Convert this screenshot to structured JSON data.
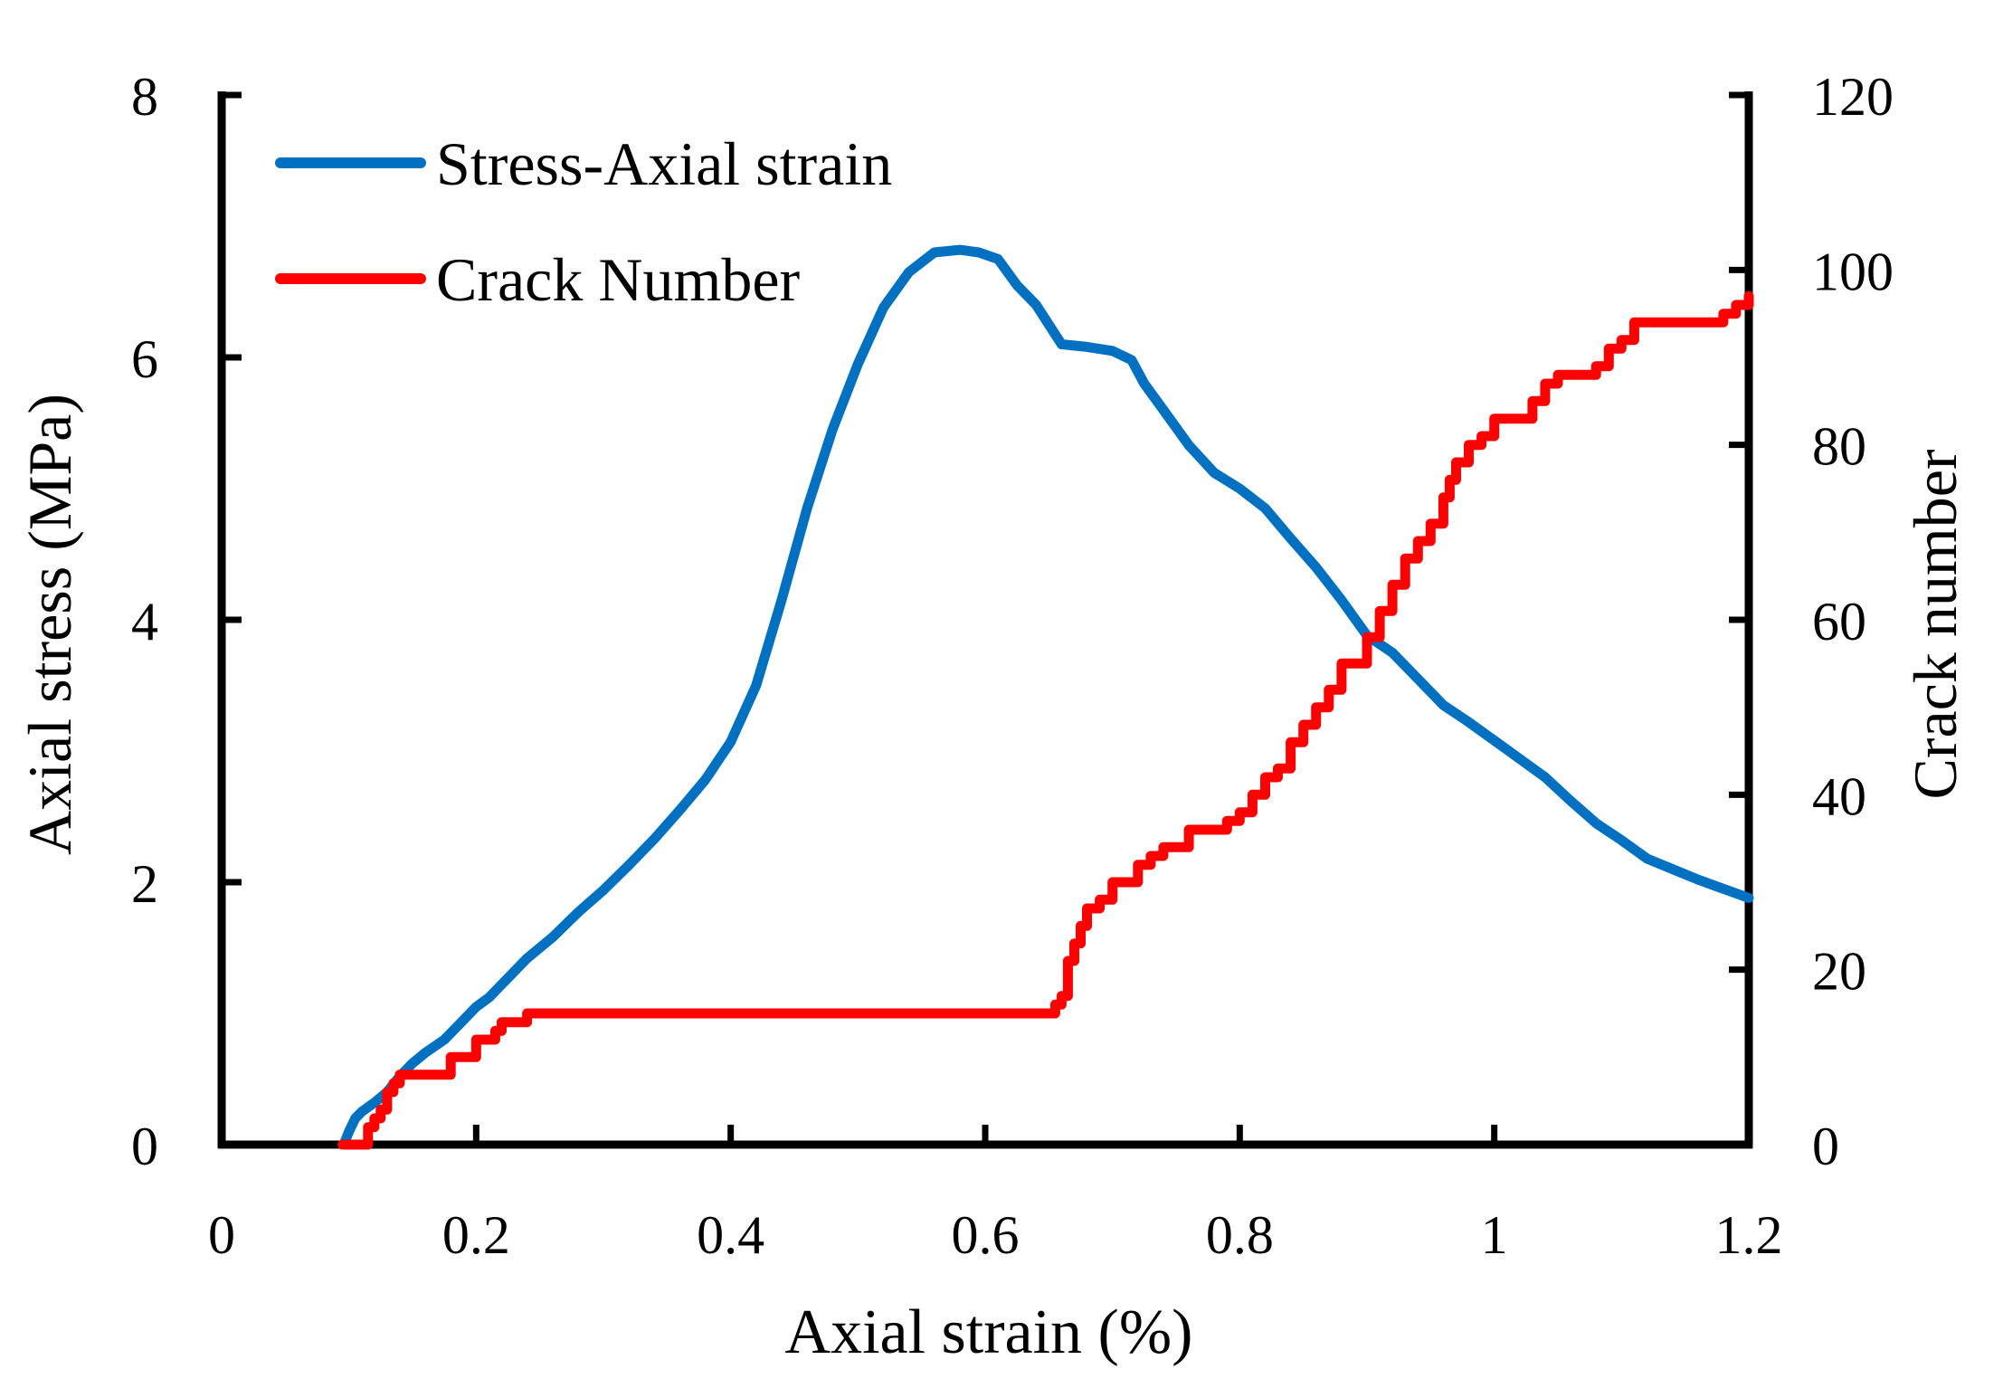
{
  "chart_data": {
    "type": "line",
    "title": "",
    "xlabel": "Axial strain (%)",
    "ylabel": "Axial stress (MPa)",
    "y2label": "Crack number",
    "xlim": [
      0,
      1.2
    ],
    "ylim": [
      0,
      8
    ],
    "y2lim": [
      0,
      120
    ],
    "xticks": [
      "0",
      "0.2",
      "0.4",
      "0.6",
      "0.8",
      "1",
      "1.2"
    ],
    "yticks": [
      "0",
      "2",
      "4",
      "6",
      "8"
    ],
    "y2ticks": [
      "0",
      "20",
      "40",
      "60",
      "80",
      "100",
      "120"
    ],
    "grid": false,
    "legend_position": "top-left",
    "series": [
      {
        "name": "Stress-Axial strain",
        "axis": "left",
        "color": "#0070C0",
        "x": [
          0.096,
          0.1,
          0.105,
          0.11,
          0.12,
          0.13,
          0.14,
          0.15,
          0.16,
          0.175,
          0.19,
          0.2,
          0.21,
          0.22,
          0.24,
          0.26,
          0.28,
          0.3,
          0.32,
          0.34,
          0.36,
          0.38,
          0.4,
          0.42,
          0.44,
          0.46,
          0.48,
          0.5,
          0.52,
          0.54,
          0.56,
          0.58,
          0.595,
          0.61,
          0.625,
          0.64,
          0.66,
          0.68,
          0.7,
          0.715,
          0.725,
          0.74,
          0.76,
          0.78,
          0.8,
          0.82,
          0.84,
          0.86,
          0.88,
          0.9,
          0.92,
          0.94,
          0.96,
          0.98,
          1.0,
          1.02,
          1.04,
          1.06,
          1.08,
          1.1,
          1.12,
          1.14,
          1.16,
          1.18,
          1.2
        ],
        "values": [
          0.0,
          0.1,
          0.2,
          0.25,
          0.32,
          0.4,
          0.52,
          0.62,
          0.7,
          0.8,
          0.95,
          1.05,
          1.12,
          1.22,
          1.42,
          1.58,
          1.77,
          1.94,
          2.13,
          2.33,
          2.55,
          2.78,
          3.07,
          3.5,
          4.15,
          4.85,
          5.45,
          5.95,
          6.38,
          6.65,
          6.8,
          6.82,
          6.8,
          6.75,
          6.55,
          6.4,
          6.1,
          6.08,
          6.05,
          5.98,
          5.8,
          5.6,
          5.33,
          5.12,
          5.0,
          4.85,
          4.62,
          4.4,
          4.15,
          3.88,
          3.75,
          3.55,
          3.35,
          3.22,
          3.08,
          2.94,
          2.8,
          2.62,
          2.45,
          2.32,
          2.18,
          2.1,
          2.02,
          1.95,
          1.88
        ]
      },
      {
        "name": "Crack Number",
        "axis": "right",
        "color": "#FF0000",
        "x": [
          0.095,
          0.1,
          0.105,
          0.11,
          0.115,
          0.12,
          0.125,
          0.13,
          0.135,
          0.14,
          0.175,
          0.18,
          0.2,
          0.21,
          0.215,
          0.22,
          0.23,
          0.24,
          0.64,
          0.65,
          0.655,
          0.66,
          0.665,
          0.67,
          0.675,
          0.68,
          0.69,
          0.7,
          0.72,
          0.73,
          0.74,
          0.76,
          0.79,
          0.8,
          0.81,
          0.82,
          0.83,
          0.84,
          0.85,
          0.86,
          0.87,
          0.88,
          0.9,
          0.91,
          0.92,
          0.93,
          0.94,
          0.95,
          0.96,
          0.965,
          0.97,
          0.98,
          0.99,
          1.0,
          1.03,
          1.04,
          1.05,
          1.08,
          1.09,
          1.1,
          1.11,
          1.18,
          1.19,
          1.2
        ],
        "values": [
          0,
          0,
          0,
          0,
          2,
          3,
          4,
          6,
          7,
          8,
          8,
          10,
          12,
          12,
          13,
          14,
          14,
          15,
          15,
          15,
          16,
          17,
          21,
          23,
          25,
          27,
          28,
          30,
          32,
          33,
          34,
          36,
          37,
          38,
          40,
          42,
          43,
          46,
          48,
          50,
          52,
          55,
          58,
          61,
          64,
          67,
          69,
          71,
          74,
          76,
          78,
          80,
          81,
          83,
          85,
          87,
          88,
          89,
          91,
          92,
          94,
          95,
          96,
          97
        ]
      }
    ]
  }
}
